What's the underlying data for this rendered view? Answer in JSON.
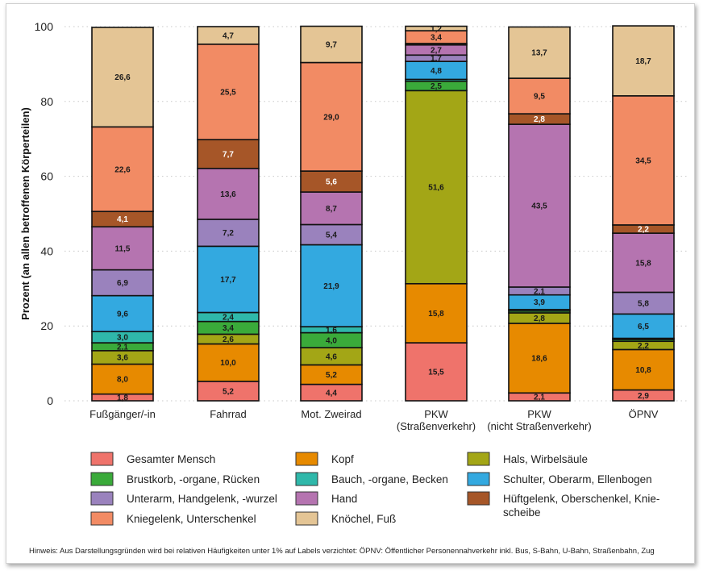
{
  "chart_data": {
    "type": "bar",
    "stacked": true,
    "ylabel": "Prozent (an allen betroffenen Körperteilen)",
    "ylim": [
      0,
      100
    ],
    "yticks": [
      0,
      20,
      40,
      60,
      80,
      100
    ],
    "grid": "horizontal dotted",
    "legend_position": "bottom",
    "categories": [
      [
        "Fußgänger/-in"
      ],
      [
        "Fahrrad"
      ],
      [
        "Mot. Zweirad"
      ],
      [
        "PKW",
        "(Straßenverkehr)"
      ],
      [
        "PKW",
        "(nicht Straßenverkehr)"
      ],
      [
        "ÖPNV"
      ]
    ],
    "series": [
      {
        "name": "Gesamter Mensch",
        "color": "#ef736b",
        "values": [
          1.8,
          5.2,
          4.4,
          15.5,
          2.1,
          2.9
        ]
      },
      {
        "name": "Kopf",
        "color": "#e78a00",
        "values": [
          8.0,
          10.0,
          5.2,
          15.8,
          18.6,
          10.8
        ]
      },
      {
        "name": "Hals, Wirbelsäule",
        "color": "#a3a616",
        "values": [
          3.6,
          2.6,
          4.6,
          51.6,
          2.8,
          2.2
        ]
      },
      {
        "name": "Brustkorb, -organe, Rücken",
        "color": "#3aaa3a",
        "values": [
          2.1,
          3.4,
          4.0,
          2.5,
          0.5,
          0.5
        ]
      },
      {
        "name": "Bauch, -organe, Becken",
        "color": "#2fb8aa",
        "values": [
          3.0,
          2.4,
          1.6,
          0.5,
          0.4,
          0.3
        ]
      },
      {
        "name": "Schulter, Oberarm, Ellenbogen",
        "color": "#33a9e0",
        "values": [
          9.6,
          17.7,
          21.9,
          4.8,
          3.9,
          6.5
        ]
      },
      {
        "name": "Unterarm, Handgelenk, -wurzel",
        "color": "#9a82bd",
        "values": [
          6.9,
          7.2,
          5.4,
          1.7,
          2.1,
          5.8
        ]
      },
      {
        "name": "Hand",
        "color": "#b574b0",
        "values": [
          11.5,
          13.6,
          8.7,
          2.7,
          43.5,
          15.8
        ]
      },
      {
        "name": "Hüftgelenk, Oberschenkel, Kniescheibe",
        "legend_lines": [
          "Hüftgelenk, Oberschenkel, Knie-",
          "scheibe"
        ],
        "color": "#a65628",
        "values": [
          4.1,
          7.7,
          5.6,
          0.4,
          2.8,
          2.2
        ]
      },
      {
        "name": "Kniegelenk, Unterschenkel",
        "color": "#f28b64",
        "values": [
          22.6,
          25.5,
          29.0,
          3.4,
          9.5,
          34.5
        ]
      },
      {
        "name": "Knöchel, Fuß",
        "color": "#e4c595",
        "values": [
          26.6,
          4.7,
          9.7,
          1.2,
          13.7,
          18.7
        ]
      }
    ],
    "label_threshold": 1,
    "note": "Hinweis: Aus Darstellungsgründen wird bei relativen Häufigkeiten unter 1% auf Labels verzichtet: ÖPNV: Öffentlicher Personennahverkehr inkl. Bus, S-Bahn, U-Bahn, Straßenbahn, Zug"
  }
}
